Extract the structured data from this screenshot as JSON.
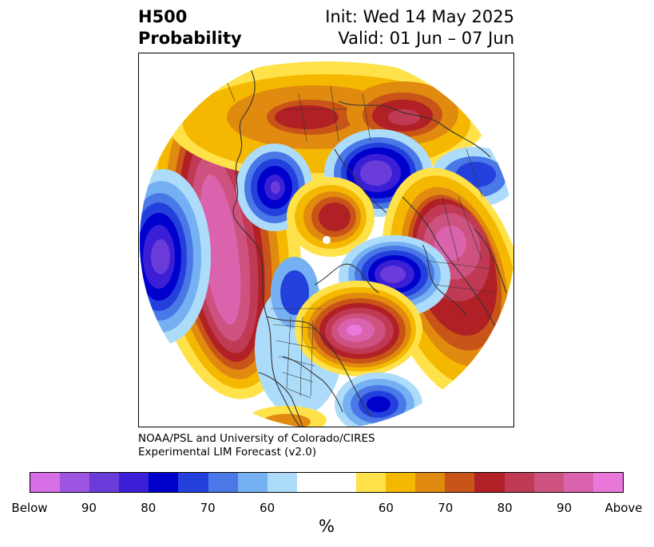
{
  "header": {
    "variable_line1": "H500",
    "variable_line2": "Probability",
    "init": "Init: Wed 14 May 2025",
    "valid": "Valid: 01 Jun – 07 Jun"
  },
  "credit": {
    "line1": "NOAA/PSL and University of Colorado/CIRES",
    "line2": "Experimental LIM Forecast (v2.0)"
  },
  "colorbar": {
    "colors": [
      "#d66ee6",
      "#9b55e0",
      "#6a3bd8",
      "#3a1fd6",
      "#0000cc",
      "#2340dd",
      "#4a78e6",
      "#75b1f2",
      "#addcfb",
      "#ffffff",
      "#ffe24a",
      "#f5b800",
      "#e08a10",
      "#c95418",
      "#b02025",
      "#c03a55",
      "#cd527f",
      "#db62ad",
      "#e878da"
    ],
    "tick_labels": [
      "Below",
      "90",
      "80",
      "70",
      "60",
      "60",
      "70",
      "80",
      "90",
      "Above"
    ],
    "unit": "%"
  },
  "map": {
    "projection": "polar stereographic (North Pole)",
    "anomalies": [
      {
        "region": "North Pacific / Bering",
        "sign": "above"
      },
      {
        "region": "Western Pacific",
        "sign": "below"
      },
      {
        "region": "Eastern Siberia",
        "sign": "below"
      },
      {
        "region": "Europe / Western Russia",
        "sign": "above"
      },
      {
        "region": "Arctic near Svalbard",
        "sign": "above"
      },
      {
        "region": "Baffin Bay / Greenland",
        "sign": "below"
      },
      {
        "region": "Eastern Canada / Great Lakes",
        "sign": "above"
      },
      {
        "region": "North Atlantic",
        "sign": "below"
      },
      {
        "region": "East Asia",
        "sign": "below"
      },
      {
        "region": "Northern Siberia / Arctic Russia",
        "sign": "above"
      }
    ]
  }
}
